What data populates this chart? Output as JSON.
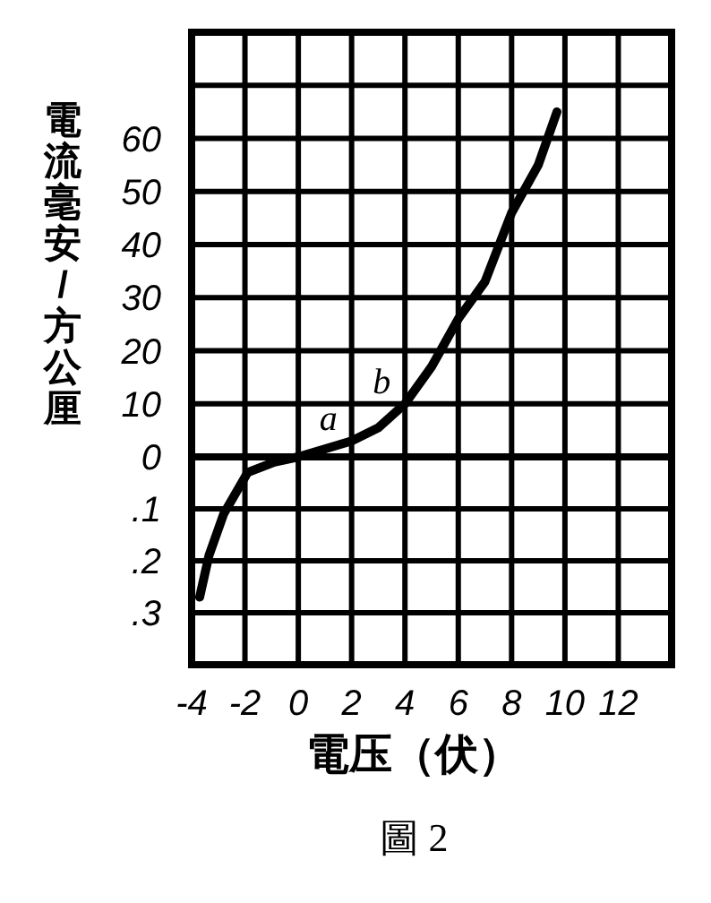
{
  "chart_data": [
    {
      "type": "line",
      "ylabel": "電流毫安/方公厘",
      "x": [
        0,
        2,
        3,
        4,
        5,
        6,
        7,
        8,
        9,
        9.7
      ],
      "series": [
        {
          "color": "#000000",
          "values": [
            0,
            3,
            5.5,
            10,
            17,
            26,
            33,
            46,
            55,
            65
          ]
        }
      ],
      "xlim": [
        -4,
        14
      ],
      "xticks": [
        -2,
        0,
        2,
        4,
        6,
        8,
        10,
        12
      ],
      "ylim": [
        0,
        80
      ],
      "yticks": [
        0,
        10,
        20,
        30,
        40,
        50,
        60,
        {
          "value": 70,
          "label": null
        }
      ],
      "tick_labels": "y",
      "grid": true,
      "line_style": "solid",
      "annotations": [
        {
          "text": "a",
          "x": 2,
          "y": 3
        },
        {
          "text": "b",
          "x": 4,
          "y": 10
        }
      ]
    },
    {
      "type": "line",
      "xlabel": "電压（伏）",
      "x": [
        -3.7,
        -3.35,
        -2.8,
        -1.9,
        -0.9,
        0
      ],
      "series": [
        {
          "color": "#000000",
          "values": [
            -0.27,
            -0.19,
            -0.11,
            -0.03,
            -0.01,
            0
          ]
        }
      ],
      "xlim": [
        -4,
        14
      ],
      "xticks": [
        {
          "value": -4,
          "label": "-4"
        },
        {
          "value": -2,
          "label": "-2"
        },
        0,
        2,
        4,
        6,
        8,
        10,
        12
      ],
      "ylim": [
        -0.4,
        0
      ],
      "yticks": [
        {
          "value": -0.3,
          "label": ".3"
        },
        {
          "value": -0.2,
          "label": ".2"
        },
        {
          "value": -0.1,
          "label": ".1"
        }
      ],
      "grid": true,
      "line_style": "solid",
      "annotations": [
        "圖 2"
      ]
    }
  ]
}
